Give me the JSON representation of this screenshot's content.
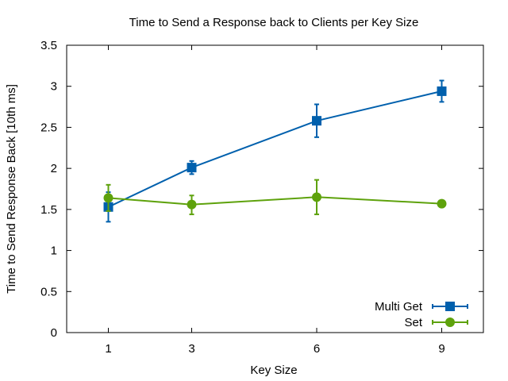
{
  "chart_data": {
    "type": "line",
    "title": "Time to Send a Response back to Clients per Key Size",
    "xlabel": "Key Size",
    "ylabel": "Time to Send Response Back [10th ms]",
    "xlim": [
      0,
      10
    ],
    "ylim": [
      0,
      3.5
    ],
    "xticks": [
      1,
      3,
      6,
      9
    ],
    "yticks": [
      0,
      0.5,
      1,
      1.5,
      2,
      2.5,
      3,
      3.5
    ],
    "ytick_labels": [
      "0",
      "0.5",
      "1",
      "1.5",
      "2",
      "2.5",
      "3",
      "3.5"
    ],
    "grid": false,
    "legend_position": "bottom-right",
    "series": [
      {
        "name": "Multi Get",
        "color": "#0060ad",
        "marker": "square",
        "x": [
          1,
          3,
          6,
          9
        ],
        "y": [
          1.53,
          2.01,
          2.58,
          2.94
        ],
        "err_low": [
          1.35,
          1.93,
          2.38,
          2.81
        ],
        "err_high": [
          1.71,
          2.09,
          2.78,
          3.07
        ]
      },
      {
        "name": "Set",
        "color": "#5ea20c",
        "marker": "circle",
        "x": [
          1,
          3,
          6,
          9
        ],
        "y": [
          1.64,
          1.56,
          1.65,
          1.57
        ],
        "err_low": [
          1.48,
          1.44,
          1.44,
          1.53
        ],
        "err_high": [
          1.8,
          1.67,
          1.86,
          1.61
        ]
      }
    ]
  }
}
